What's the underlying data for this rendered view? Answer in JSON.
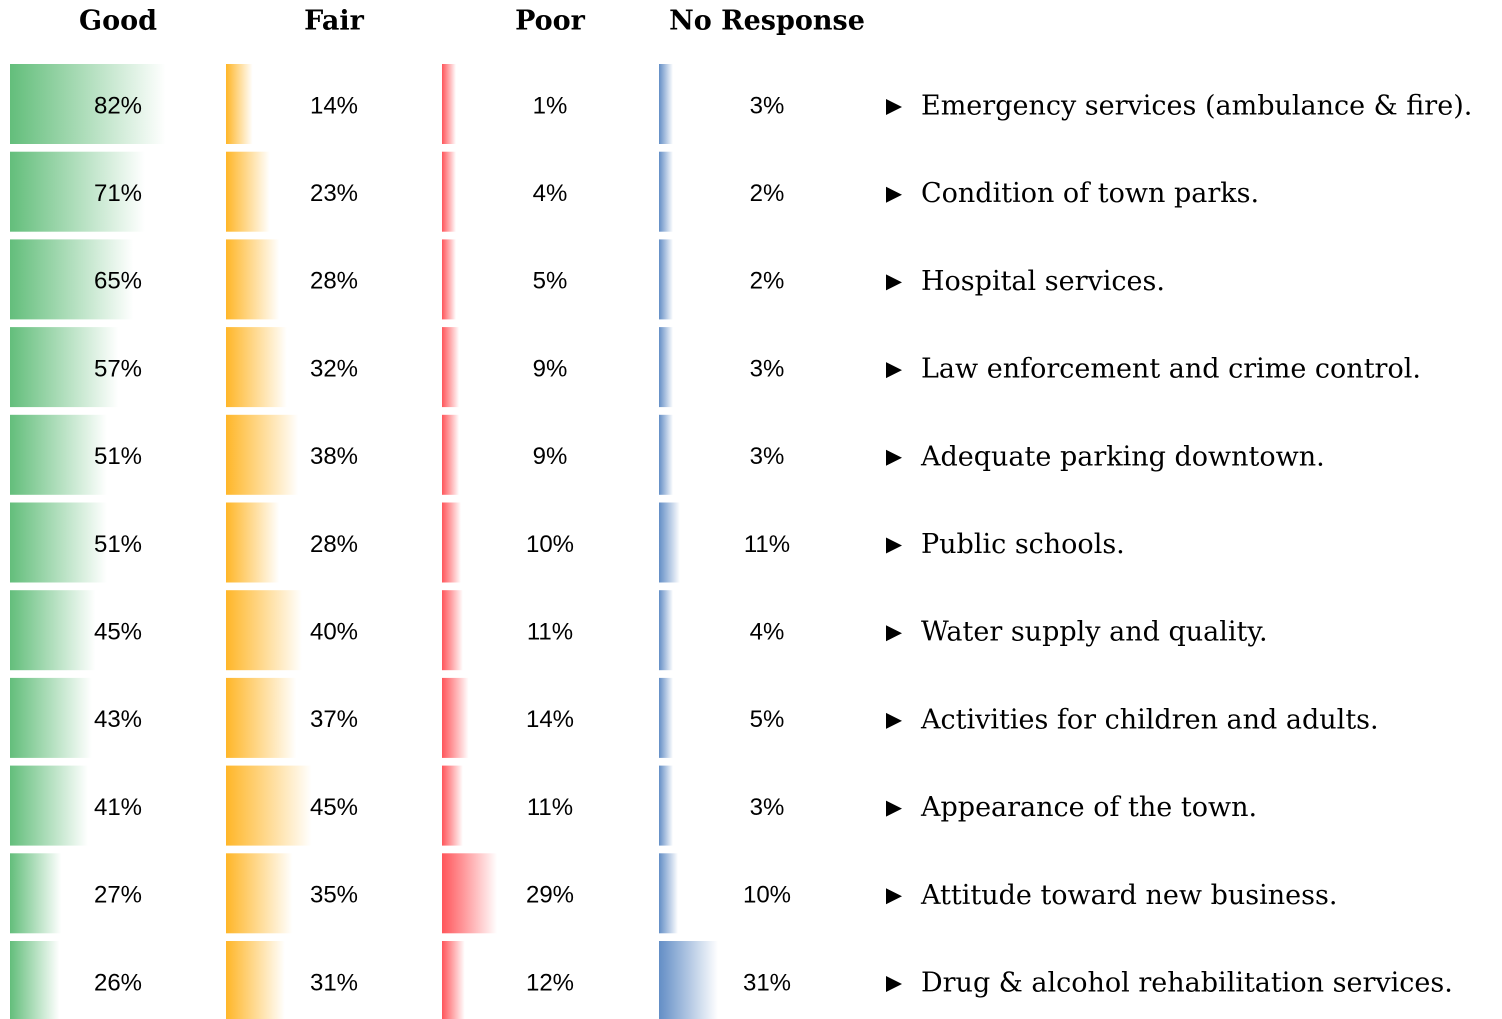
{
  "chart_data": {
    "type": "bar",
    "categories": [
      "Emergency services (ambulance & fire).",
      "Condition of town parks.",
      "Hospital services.",
      "Law enforcement and crime control.",
      "Adequate parking downtown.",
      "Public schools.",
      "Water supply and quality.",
      "Activities for children and adults.",
      "Appearance of the town.",
      "Attitude toward new business.",
      "Drug & alcohol rehabilitation services."
    ],
    "series": [
      {
        "name": "Good",
        "color": "#63be7b",
        "values": [
          82,
          71,
          65,
          57,
          51,
          51,
          45,
          43,
          41,
          27,
          26
        ],
        "value_labels": [
          "82%",
          "71%",
          "65%",
          "57%",
          "51%",
          "51%",
          "45%",
          "43%",
          "41%",
          "27%",
          "26%"
        ]
      },
      {
        "name": "Fair",
        "color": "#ffb628",
        "values": [
          14,
          23,
          28,
          32,
          38,
          28,
          40,
          37,
          45,
          35,
          31
        ],
        "value_labels": [
          "14%",
          "23%",
          "28%",
          "32%",
          "38%",
          "28%",
          "40%",
          "37%",
          "45%",
          "35%",
          "31%"
        ]
      },
      {
        "name": "Poor",
        "color": "#ff555a",
        "values": [
          1,
          4,
          5,
          9,
          9,
          10,
          11,
          14,
          11,
          29,
          12
        ],
        "value_labels": [
          "1%",
          "4%",
          "5%",
          "9%",
          "9%",
          "10%",
          "11%",
          "14%",
          "11%",
          "29%",
          "12%"
        ]
      },
      {
        "name": "No Response",
        "color": "#638ec6",
        "values": [
          3,
          2,
          2,
          3,
          3,
          11,
          4,
          5,
          3,
          10,
          31
        ],
        "value_labels": [
          "3%",
          "2%",
          "2%",
          "3%",
          "3%",
          "11%",
          "4%",
          "5%",
          "3%",
          "10%",
          "31%"
        ]
      }
    ]
  }
}
